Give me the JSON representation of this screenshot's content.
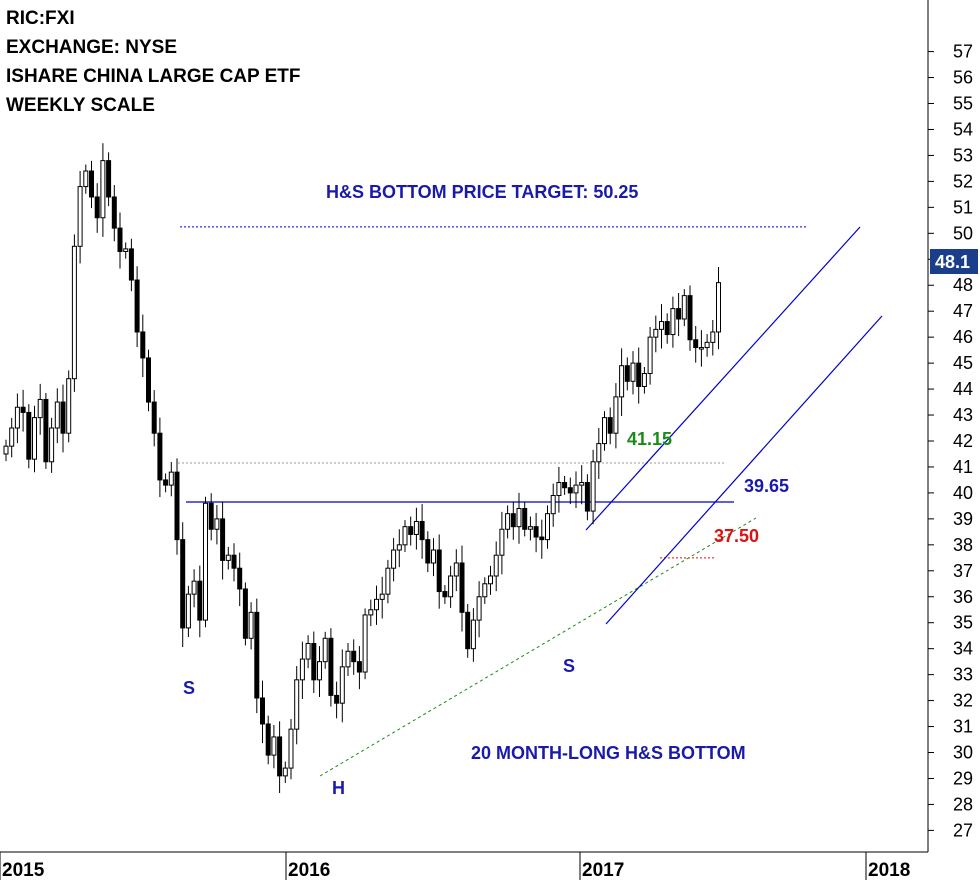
{
  "header": {
    "line1": "RIC:FXI",
    "line2": "EXCHANGE: NYSE",
    "line3": "ISHARE CHINA LARGE CAP ETF",
    "line4": "WEEKLY SCALE"
  },
  "annotations": {
    "target": "H&S BOTTOM PRICE TARGET: 50.25",
    "level_green": "41.15",
    "level_blue": "39.65",
    "level_red": "37.50",
    "pattern": "20 MONTH-LONG H&S BOTTOM",
    "left_shoulder": "S",
    "head": "H",
    "right_shoulder": "S"
  },
  "last_price": "48.1",
  "colors": {
    "up_candle": "#ffffff",
    "down_candle": "#000000",
    "channel": "#0000cc",
    "annotation_blue": "#1a1aaa",
    "annotation_green": "#1a8a1a",
    "annotation_red": "#dd1111",
    "price_tag": "#1a3e8a"
  },
  "chart_data": {
    "type": "candlestick",
    "title": "",
    "ylim": [
      26,
      58
    ],
    "yticks": [
      27,
      28,
      29,
      30,
      31,
      32,
      33,
      34,
      35,
      36,
      37,
      38,
      39,
      40,
      41,
      42,
      43,
      44,
      45,
      46,
      47,
      48,
      49,
      50,
      51,
      52,
      53,
      54,
      55,
      56,
      57
    ],
    "xticks": [
      "2015",
      "2016",
      "2017",
      "2018"
    ],
    "levels": {
      "price_target": 50.25,
      "neckline": 39.65,
      "breakout_high": 41.15,
      "pullback": 37.5
    },
    "closes": [
      41.8,
      42.5,
      43.3,
      43.1,
      41.3,
      42.9,
      43.6,
      41.2,
      42.5,
      43.5,
      42.3,
      44.4,
      49.5,
      51.8,
      52.4,
      51.4,
      50.6,
      52.8,
      51.4,
      50.2,
      49.3,
      49.4,
      48.2,
      46.2,
      45.2,
      43.5,
      42.3,
      40.5,
      40.3,
      40.8,
      38.2,
      34.8,
      36.1,
      36.6,
      35.1,
      39.6,
      38.6,
      39.0,
      37.4,
      37.6,
      37.1,
      36.3,
      34.4,
      35.4,
      32.1,
      31.1,
      29.9,
      30.6,
      29.1,
      29.4,
      30.9,
      32.8,
      33.6,
      34.2,
      32.8,
      33.5,
      34.4,
      32.2,
      31.9,
      33.3,
      33.9,
      33.5,
      33.1,
      35.3,
      35.5,
      35.9,
      36.1,
      37.1,
      37.8,
      38.0,
      38.7,
      38.4,
      38.9,
      38.2,
      37.3,
      37.8,
      36.2,
      36.0,
      36.8,
      37.3,
      35.4,
      34.0,
      35.1,
      36.0,
      36.5,
      36.8,
      37.6,
      38.6,
      39.2,
      38.7,
      39.4,
      38.6,
      38.7,
      38.3,
      38.2,
      39.2,
      39.9,
      40.4,
      40.2,
      40.0,
      40.3,
      40.4,
      39.3,
      41.2,
      41.9,
      42.9,
      42.3,
      43.7,
      44.9,
      44.3,
      45.0,
      44.1,
      44.6,
      46.0,
      46.3,
      46.6,
      46.1,
      47.1,
      46.7,
      47.6,
      45.9,
      45.6,
      45.6,
      45.8,
      46.2,
      48.1
    ]
  }
}
